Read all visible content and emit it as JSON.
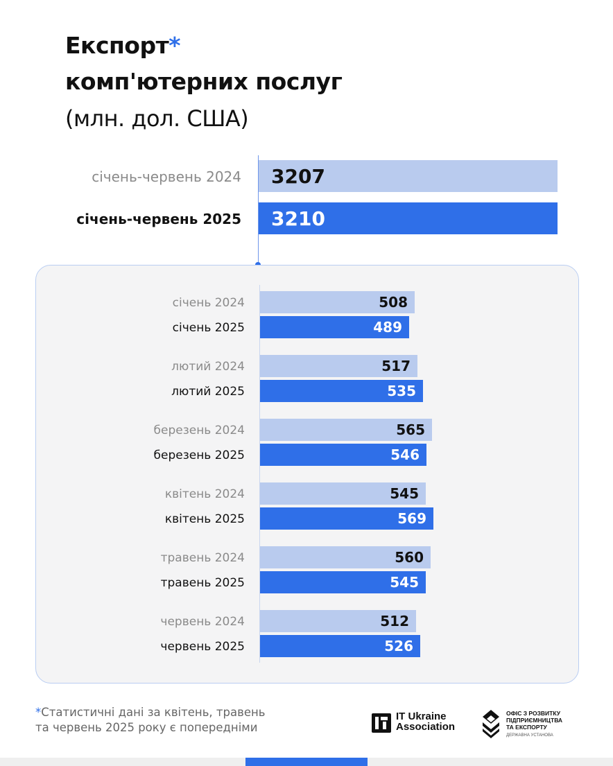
{
  "title": {
    "line1": "Експорт",
    "asterisk": "*",
    "line2": "комп'ютерних послуг",
    "line3": "(млн. дол. США)"
  },
  "chart_data": [
    {
      "type": "bar",
      "orientation": "horizontal",
      "categories": [
        "січень-червень 2024",
        "січень-червень 2025"
      ],
      "values": [
        3207,
        3210
      ],
      "xlim": [
        0,
        3500
      ],
      "colors": [
        "#b9cbee",
        "#2f6fe8"
      ]
    },
    {
      "type": "bar",
      "orientation": "horizontal",
      "groups": [
        {
          "label_2024": "січень 2024",
          "value_2024": 508,
          "label_2025": "січень 2025",
          "value_2025": 489
        },
        {
          "label_2024": "лютий 2024",
          "value_2024": 517,
          "label_2025": "лютий 2025",
          "value_2025": 535
        },
        {
          "label_2024": "березень 2024",
          "value_2024": 565,
          "label_2025": "березень 2025",
          "value_2025": 546
        },
        {
          "label_2024": "квітень 2024",
          "value_2024": 545,
          "label_2025": "квітень 2025",
          "value_2025": 569
        },
        {
          "label_2024": "травень 2024",
          "value_2024": 560,
          "label_2025": "травень 2025",
          "value_2025": 545
        },
        {
          "label_2024": "червень 2024",
          "value_2024": 512,
          "label_2025": "червень 2025",
          "value_2025": 526
        }
      ],
      "xlim": [
        0,
        569
      ],
      "colors": {
        "y2024": "#b9cbee",
        "y2025": "#2f6fe8"
      }
    }
  ],
  "footnote": {
    "asterisk": "*",
    "line1": "Статистичні дані за квітень, травень",
    "line2": "та червень 2025 року є попередніми"
  },
  "logos": {
    "itua_line1": "IT Ukraine",
    "itua_line2": "Association",
    "office_line1": "ОФІС З РОЗВИТКУ",
    "office_line2": "ПІДПРИЄМНИЦТВА",
    "office_line3": "ТА ЕКСПОРТУ",
    "office_line4": "ДЕРЖАВНА УСТАНОВА"
  }
}
